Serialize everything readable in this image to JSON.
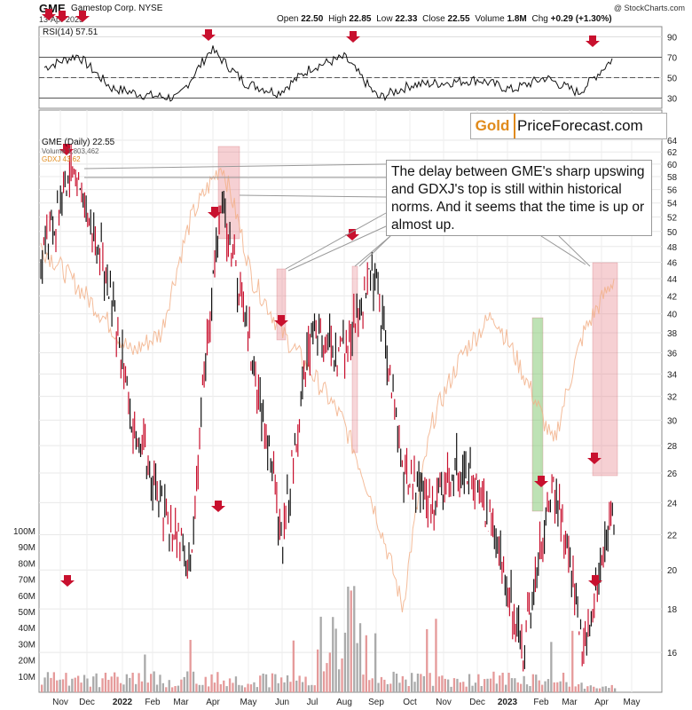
{
  "header": {
    "symbol": "GME",
    "company": "Gamestop Corp.  NYSE",
    "date": "13-Apr-2023",
    "open": "22.50",
    "high": "22.85",
    "low": "22.33",
    "close": "22.55",
    "volume": "1.8M",
    "chg": "+0.29 (+1.30%)",
    "copyright": "@ StockCharts.com"
  },
  "brand": {
    "gold": "Gold",
    "rest": "PriceForecast.com"
  },
  "annotation": "The delay between GME's sharp upswing and GDXJ's top is still within historical norms. And it seems that the time is up or almost up.",
  "legend": {
    "main": "GME (Daily) 22.55",
    "volume": "Volume 1,803,462",
    "gdxj": "GDXJ 43.62"
  },
  "chart_data": [
    {
      "type": "line",
      "title": "RSI(14) 57.51",
      "ylim": [
        20,
        100
      ],
      "yticks": [
        "90",
        "70",
        "50",
        "30"
      ],
      "reference_lines": [
        70,
        50,
        30
      ],
      "x": [
        "Nov",
        "Dec",
        "2022",
        "Feb",
        "Mar",
        "Apr",
        "May",
        "Jun",
        "Jul",
        "Aug",
        "Sep",
        "Oct",
        "Nov",
        "Dec",
        "2023",
        "Feb",
        "Mar",
        "Apr"
      ],
      "values": [
        60,
        72,
        40,
        33,
        30,
        78,
        45,
        35,
        60,
        70,
        30,
        43,
        45,
        48,
        38,
        50,
        35,
        68
      ]
    },
    {
      "type": "line",
      "title": "GME (Daily) 22.55",
      "ylim": [
        15,
        64
      ],
      "scale": "log",
      "yticks": [
        "64",
        "62",
        "60",
        "58",
        "56",
        "54",
        "52",
        "50",
        "48",
        "46",
        "44",
        "42",
        "40",
        "38",
        "36",
        "34",
        "32",
        "30",
        "28",
        "26",
        "24",
        "22",
        "20",
        "18",
        "16"
      ],
      "xticks": [
        "Nov",
        "Dec",
        "2022",
        "Feb",
        "Mar",
        "Apr",
        "May",
        "Jun",
        "Jul",
        "Aug",
        "Sep",
        "Oct",
        "Nov",
        "Dec",
        "2023",
        "Feb",
        "Mar",
        "Apr",
        "May"
      ],
      "series": [
        {
          "name": "GME",
          "color": "#c8102e",
          "values": [
            45,
            60,
            47,
            30,
            24,
            20,
            53,
            36,
            21,
            38,
            36,
            45,
            26,
            24,
            27,
            22,
            16,
            25,
            16,
            23
          ]
        },
        {
          "name": "GDXJ",
          "color": "#f2b088",
          "values": [
            48,
            44,
            40,
            36,
            38,
            52,
            60,
            44,
            38,
            34,
            30,
            24,
            18,
            30,
            36,
            40,
            34,
            28,
            38,
            44
          ]
        }
      ],
      "markers": "red down-arrows at GME tops and bottoms",
      "highlights": [
        "pink: GDXJ tops (Apr 2022, Jun 2022, Aug 2022, Apr 2023)",
        "green: Jan-Feb 2023"
      ]
    },
    {
      "type": "bar",
      "title": "Volume 1,803,462",
      "ylim": [
        0,
        100
      ],
      "yticks": [
        "100M",
        "90M",
        "80M",
        "70M",
        "60M",
        "50M",
        "40M",
        "30M",
        "20M",
        "10M"
      ]
    }
  ]
}
